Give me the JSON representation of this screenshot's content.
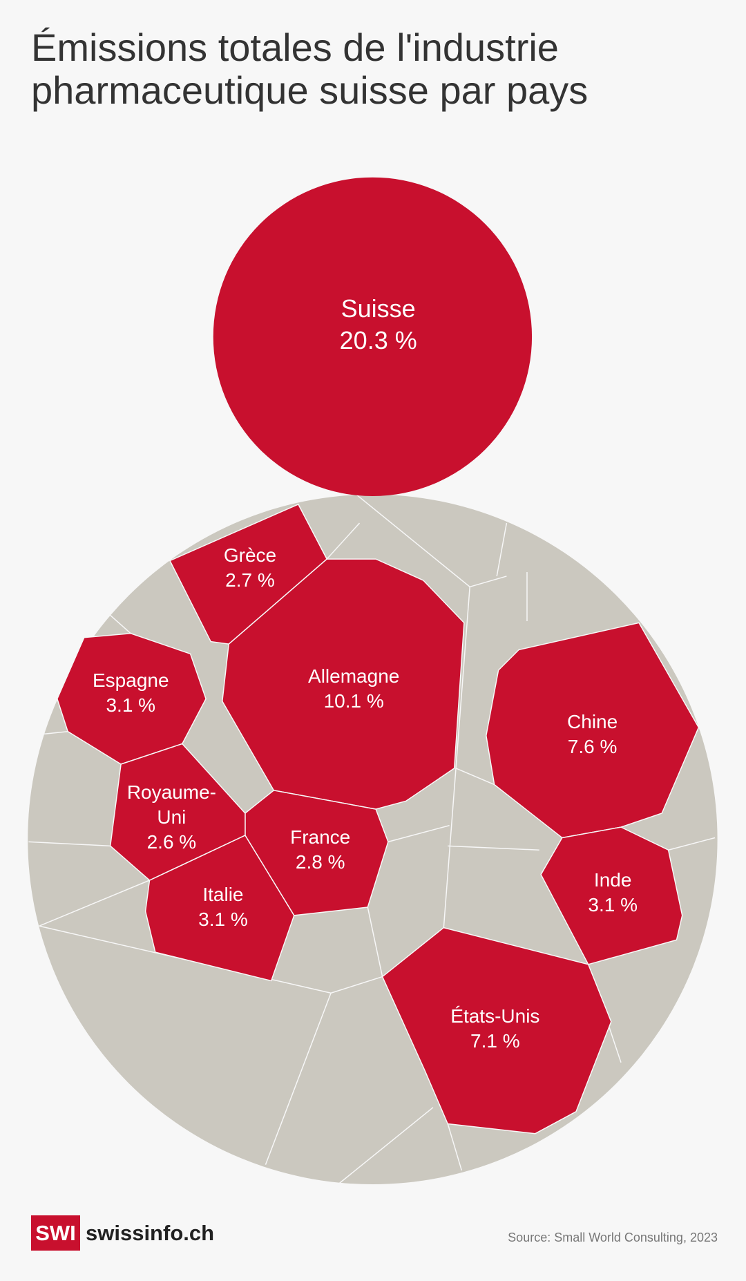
{
  "chart_data": {
    "type": "treemap",
    "title": "Émissions totales de l'industrie pharmaceutique suisse par pays",
    "categories": [
      "Suisse",
      "Allemagne",
      "Chine",
      "États-Unis",
      "Espagne",
      "Italie",
      "Inde",
      "France",
      "Grèce",
      "Royaume-Uni"
    ],
    "values": [
      20.3,
      10.1,
      7.6,
      7.1,
      3.1,
      3.1,
      3.1,
      2.8,
      2.7,
      2.6
    ],
    "value_labels": [
      "20.3 %",
      "10.1 %",
      "7.6 %",
      "7.1 %",
      "3.1 %",
      "3.1 %",
      "3.1 %",
      "2.8 %",
      "2.7 %",
      "2.6 %"
    ],
    "color": "#c8102e",
    "source": "Source: Small World Consulting, 2023"
  },
  "footer": {
    "logo": "SWI",
    "brand": "swissinfo.ch"
  }
}
